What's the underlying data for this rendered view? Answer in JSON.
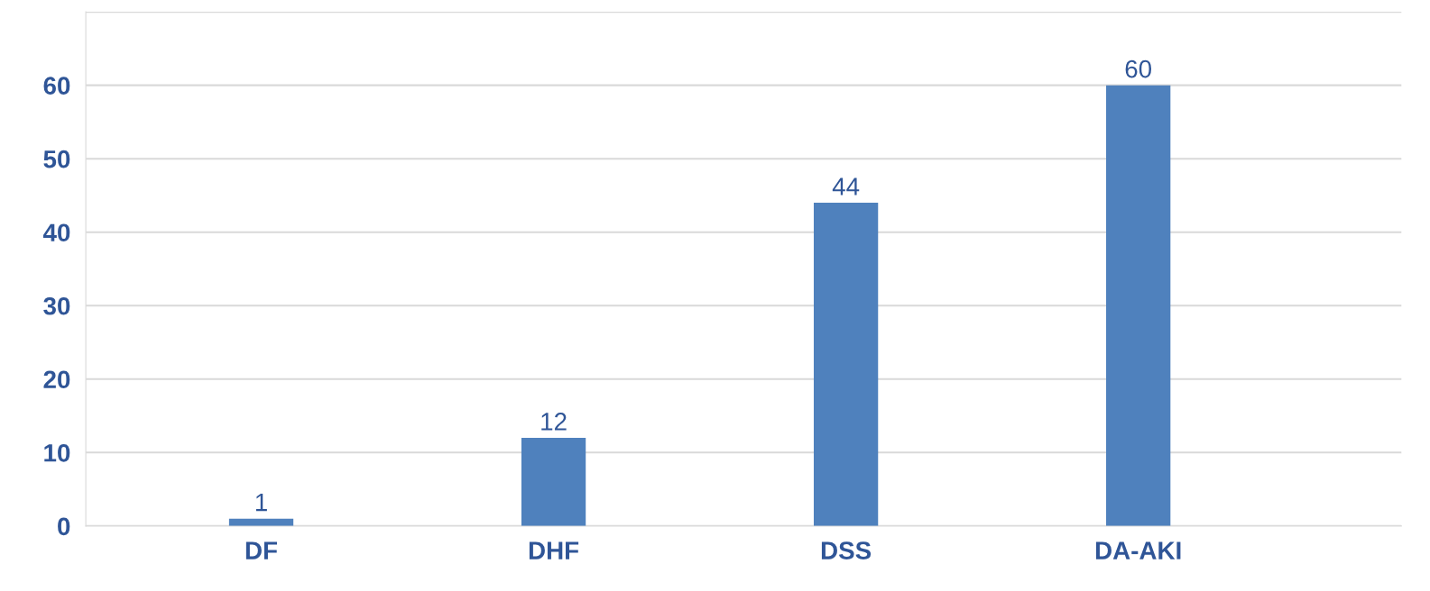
{
  "chart_data": {
    "type": "bar",
    "categories": [
      "DF",
      "DHF",
      "DSS",
      "DA-AKI"
    ],
    "values": [
      1,
      12,
      44,
      60
    ],
    "color": "#4f81bd",
    "ylim": [
      0,
      70
    ],
    "yticks": [
      0,
      10,
      20,
      30,
      40,
      50,
      60,
      {
        "value": 70,
        "label": null
      }
    ],
    "grid": "y",
    "data_labels": true
  }
}
